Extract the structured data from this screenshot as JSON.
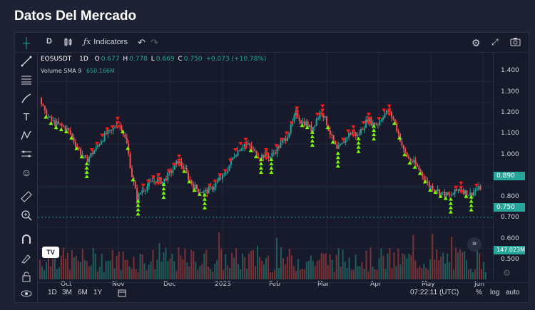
{
  "page": {
    "title": "Datos Del Mercado"
  },
  "toolbar": {
    "interval": "D",
    "indicators_label": "Indicators",
    "icons": [
      "crosshair-icon",
      "candles-icon",
      "fx-icon",
      "undo-icon",
      "redo-icon",
      "settings-icon",
      "fullscreen-icon",
      "camera-icon"
    ]
  },
  "sidebar": {
    "tools": [
      "crosshair-icon",
      "trend-line-icon",
      "fib-lines-icon",
      "brush-icon",
      "text-icon",
      "pattern-icon",
      "measure-icon",
      "emoji-icon",
      "ruler-icon",
      "zoom-in-icon",
      "magnet-icon",
      "drawing-lock-icon",
      "lock-icon",
      "eye-icon"
    ]
  },
  "legend": {
    "symbol": "EOSUSDT",
    "interval": "1D",
    "o_label": "O",
    "o_value": "0.677",
    "h_label": "H",
    "h_value": "0.778",
    "l_label": "L",
    "l_value": "0.669",
    "c_label": "C",
    "c_value": "0.750",
    "change": "+0.073 (+10.78%)",
    "volume_label": "Volume SMA 9",
    "volume_value": "650.166M"
  },
  "price_axis": {
    "ticks": [
      "1.400",
      "1.300",
      "1.200",
      "1.100",
      "1.000",
      "0.900",
      "0.800",
      "0.700",
      "0.600",
      "0.500"
    ],
    "badge_upper": "0.890",
    "badge_current": "0.750",
    "badge_volume": "147.023M"
  },
  "time_axis": {
    "ticks": [
      "Oct",
      "Nov",
      "Dec",
      "2023",
      "Feb",
      "Mar",
      "Apr",
      "May",
      "Jun"
    ]
  },
  "bottom_bar": {
    "ranges": [
      "1D",
      "3M",
      "6M",
      "1Y"
    ],
    "time": "07:22:11 (UTC)",
    "percent": "%",
    "log": "log",
    "auto": "auto"
  },
  "logo_text": "TV",
  "colors": {
    "up": "#26a69a",
    "down": "#ef5350",
    "buy_marker": "#7cfc00",
    "sell_marker": "#ff1a1a",
    "accent_green": "#26a69a",
    "background": "#161a2a"
  },
  "chart_data": {
    "type": "candlestick",
    "symbol": "EOSUSDT",
    "ylim": [
      0.5,
      1.45
    ],
    "x_ticks": [
      "Oct",
      "Nov",
      "Dec",
      "2023",
      "Feb",
      "Mar",
      "Apr",
      "May",
      "Jun"
    ],
    "price_path": [
      1.32,
      1.25,
      1.22,
      1.2,
      1.19,
      1.18,
      1.15,
      1.1,
      1.06,
      1.02,
      1.05,
      1.08,
      1.12,
      1.15,
      1.16,
      1.2,
      1.18,
      1.1,
      0.95,
      0.84,
      0.88,
      0.9,
      0.92,
      0.93,
      0.92,
      0.95,
      0.98,
      1.02,
      0.99,
      0.94,
      0.9,
      0.88,
      0.87,
      0.88,
      0.9,
      0.93,
      0.95,
      1.0,
      1.05,
      1.08,
      1.1,
      1.09,
      1.06,
      1.04,
      1.05,
      1.04,
      1.07,
      1.1,
      1.13,
      1.18,
      1.25,
      1.21,
      1.2,
      1.17,
      1.22,
      1.26,
      1.2,
      1.13,
      1.07,
      1.1,
      1.14,
      1.16,
      1.14,
      1.18,
      1.22,
      1.2,
      1.2,
      1.24,
      1.26,
      1.22,
      1.15,
      1.07,
      1.03,
      1.01,
      0.98,
      0.94,
      0.9,
      0.89,
      0.87,
      0.86,
      0.85,
      0.87,
      0.89,
      0.87,
      0.86,
      0.88,
      0.89
    ],
    "current": 0.75
  }
}
